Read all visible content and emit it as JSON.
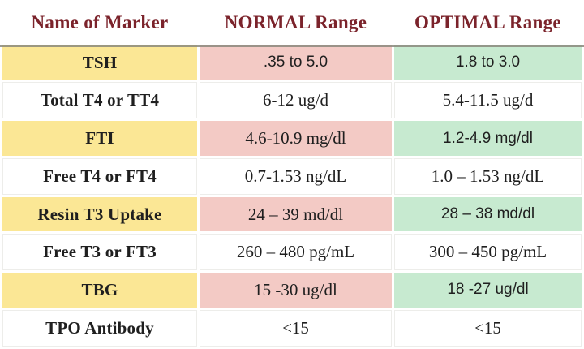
{
  "table": {
    "headers": [
      "Name of Marker",
      "NORMAL Range",
      "OPTIMAL Range"
    ],
    "rows": [
      {
        "marker": "TSH",
        "normal": ".35 to 5.0",
        "optimal": "1.8 to 3.0",
        "highlighted": true,
        "normal_sans": true,
        "optimal_sans": true
      },
      {
        "marker": "Total T4 or TT4",
        "normal": "6-12 ug/d",
        "optimal": "5.4-11.5 ug/d",
        "highlighted": false,
        "normal_sans": false,
        "optimal_sans": false
      },
      {
        "marker": "FTI",
        "normal": "4.6-10.9 mg/dl",
        "optimal": "1.2-4.9 mg/dl",
        "highlighted": true,
        "normal_sans": false,
        "optimal_sans": true
      },
      {
        "marker": "Free T4 or FT4",
        "normal": "0.7-1.53 ng/dL",
        "optimal": "1.0 – 1.53 ng/dL",
        "highlighted": false,
        "normal_sans": false,
        "optimal_sans": false
      },
      {
        "marker": "Resin T3 Uptake",
        "normal": "24 – 39 md/dl",
        "optimal": "28 – 38 md/dl",
        "highlighted": true,
        "normal_sans": false,
        "optimal_sans": true
      },
      {
        "marker": "Free T3 or FT3",
        "normal": "260 – 480 pg/mL",
        "optimal": "300 – 450 pg/mL",
        "highlighted": false,
        "normal_sans": false,
        "optimal_sans": false
      },
      {
        "marker": "TBG",
        "normal": "15 -30 ug/dl",
        "optimal": "18 -27 ug/dl",
        "highlighted": true,
        "normal_sans": false,
        "optimal_sans": true
      },
      {
        "marker": "TPO Antibody",
        "normal": "<15",
        "optimal": "<15",
        "highlighted": false,
        "normal_sans": false,
        "optimal_sans": false
      }
    ],
    "colors": {
      "header_text": "#7b232b",
      "marker_bg": "#fbe795",
      "normal_bg": "#f3cac5",
      "optimal_bg": "#c7ead0",
      "header_divider": "#8a887d"
    }
  },
  "chart_data": {
    "type": "table",
    "title": "",
    "columns": [
      "Name of Marker",
      "NORMAL Range",
      "OPTIMAL Range"
    ],
    "rows": [
      [
        "TSH",
        ".35 to 5.0",
        "1.8 to 3.0"
      ],
      [
        "Total T4 or TT4",
        "6-12 ug/d",
        "5.4-11.5 ug/d"
      ],
      [
        "FTI",
        "4.6-10.9 mg/dl",
        "1.2-4.9 mg/dl"
      ],
      [
        "Free T4 or FT4",
        "0.7-1.53 ng/dL",
        "1.0 – 1.53 ng/dL"
      ],
      [
        "Resin T3 Uptake",
        "24 – 39 md/dl",
        "28 – 38 md/dl"
      ],
      [
        "Free T3 or FT3",
        "260 – 480 pg/mL",
        "300 – 450 pg/mL"
      ],
      [
        "TBG",
        "15 -30 ug/dl",
        "18 -27 ug/dl"
      ],
      [
        "TPO Antibody",
        "<15",
        "<15"
      ]
    ],
    "layout_hints": {
      "highlighted_rows": [
        0,
        2,
        4,
        6
      ],
      "highlight_colors_by_column": [
        "#fbe795",
        "#f3cac5",
        "#c7ead0"
      ],
      "grid": "faint gray on white rows, white gaps between colored cells"
    }
  }
}
